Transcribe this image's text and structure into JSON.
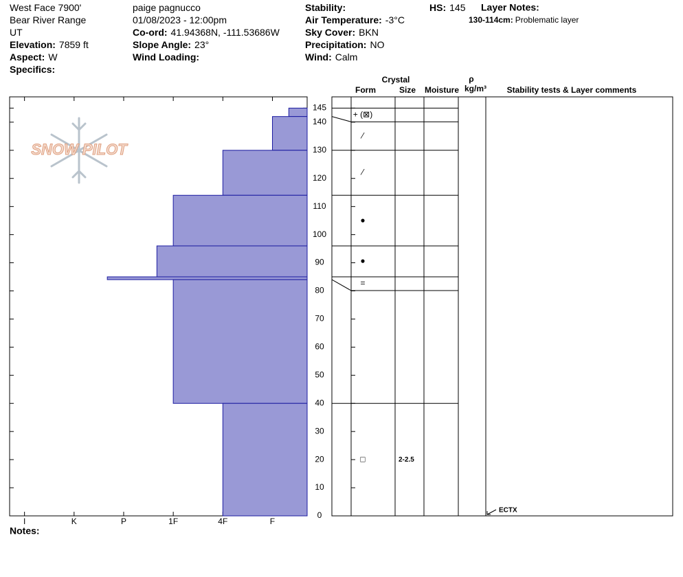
{
  "header": {
    "columns": [
      [
        {
          "value": "West Face 7900'"
        },
        {
          "value": "Bear River Range"
        },
        {
          "value": "UT"
        },
        {
          "label": "Elevation:",
          "value": "7859 ft"
        },
        {
          "label": "Aspect:",
          "value": "W"
        },
        {
          "label": "Specifics:"
        }
      ],
      [
        {
          "value": "paige pagnucco"
        },
        {
          "value": "01/08/2023 - 12:00pm"
        },
        {
          "label": "Co-ord:",
          "value": "41.94368N, -111.53686W"
        },
        {
          "label": "Slope Angle:",
          "value": "23°"
        },
        {
          "label": "Wind Loading:"
        }
      ],
      [
        {
          "label": "Stability:"
        },
        {
          "label": "Air Temperature:",
          "value": "-3°C"
        },
        {
          "label": "Sky Cover:",
          "value": "BKN"
        },
        {
          "label": "Precipitation:",
          "value": "NO"
        },
        {
          "label": "Wind:",
          "value": "Calm"
        }
      ],
      [
        {
          "label": "HS:",
          "value": "145"
        }
      ]
    ],
    "layer_notes": {
      "title": "Layer Notes:",
      "items": [
        {
          "label": "130-114cm:",
          "value": "Problematic layer"
        }
      ]
    },
    "logo": "SNOW PILOT"
  },
  "table_headers": {
    "crystal": "Crystal",
    "form": "Form",
    "size": "Size",
    "moisture": "Moisture",
    "density_symbol": "ρ",
    "density_unit": "kg/m³",
    "comments": "Stability tests & Layer comments"
  },
  "notes_label": "Notes:",
  "chart_data": {
    "type": "bar",
    "color": "#9999d6",
    "edge_color": "#1a1aa0",
    "xlim": [
      6.3,
      0.3
    ],
    "xticks": [
      {
        "value": 6,
        "label": "I"
      },
      {
        "value": 5,
        "label": "K"
      },
      {
        "value": 4,
        "label": "P"
      },
      {
        "value": 3,
        "label": "1F"
      },
      {
        "value": 2,
        "label": "4F"
      },
      {
        "value": 1,
        "label": "F"
      }
    ],
    "ylim": [
      0,
      149
    ],
    "yticks": [
      0,
      10,
      20,
      30,
      40,
      50,
      60,
      70,
      80,
      90,
      100,
      110,
      120,
      130,
      140,
      145
    ],
    "layers": [
      {
        "top": 145,
        "bottom": 142,
        "hardness": 0.67,
        "form": "+ (⊠)"
      },
      {
        "top": 142,
        "bottom": 130,
        "hardness": 1,
        "form": "⁄"
      },
      {
        "top": 130,
        "bottom": 114,
        "hardness": 2,
        "form": "⁄"
      },
      {
        "top": 114,
        "bottom": 96,
        "hardness": 3,
        "form": "●"
      },
      {
        "top": 96,
        "bottom": 85,
        "hardness": 3.33,
        "form": "●"
      },
      {
        "top": 85,
        "bottom": 84,
        "hardness": 4.33,
        "form": "="
      },
      {
        "top": 84,
        "bottom": 40,
        "hardness": 3
      },
      {
        "top": 40,
        "bottom": 0,
        "hardness": 2,
        "form": "□",
        "size": "2-2.5"
      }
    ],
    "stability_tests": [
      {
        "label": "ECTX",
        "height": 0
      }
    ]
  }
}
